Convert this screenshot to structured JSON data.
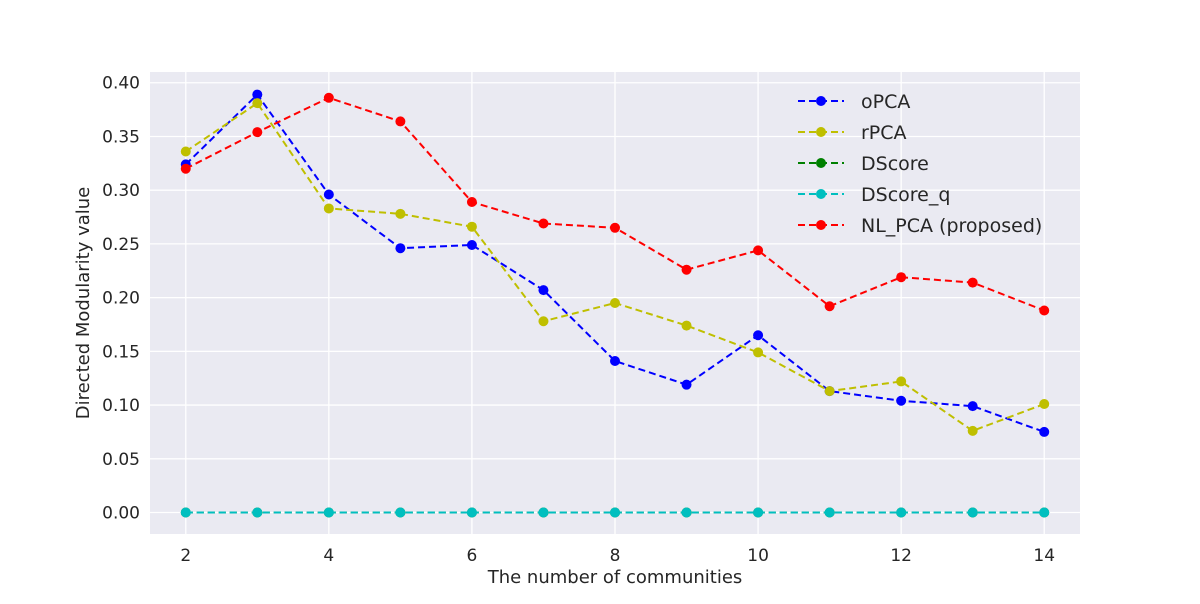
{
  "chart_data": {
    "type": "line",
    "title": "",
    "xlabel": "The number of communities",
    "ylabel": "Directed Modularity value",
    "x": [
      2,
      3,
      4,
      5,
      6,
      7,
      8,
      9,
      10,
      11,
      12,
      13,
      14
    ],
    "xlim": [
      1.5,
      14.5
    ],
    "ylim": [
      -0.02,
      0.41
    ],
    "xticks": [
      2,
      4,
      6,
      8,
      10,
      12,
      14
    ],
    "yticks": [
      0.0,
      0.05,
      0.1,
      0.15,
      0.2,
      0.25,
      0.3,
      0.35,
      0.4
    ],
    "ytick_labels": [
      "0.00",
      "0.05",
      "0.10",
      "0.15",
      "0.20",
      "0.25",
      "0.30",
      "0.35",
      "0.40"
    ],
    "grid": true,
    "legend_position": "top-right",
    "series": [
      {
        "name": "oPCA",
        "color": "#0000ff",
        "values": [
          0.324,
          0.389,
          0.296,
          0.246,
          0.249,
          0.207,
          0.141,
          0.119,
          0.165,
          0.113,
          0.104,
          0.099,
          0.075
        ]
      },
      {
        "name": "rPCA",
        "color": "#bfbf00",
        "values": [
          0.336,
          0.381,
          0.283,
          0.278,
          0.266,
          0.178,
          0.195,
          0.174,
          0.149,
          0.113,
          0.122,
          0.076,
          0.101
        ]
      },
      {
        "name": "DScore",
        "color": "#008000",
        "values": [
          0,
          0,
          0,
          0,
          0,
          0,
          0,
          0,
          0,
          0,
          0,
          0,
          0
        ]
      },
      {
        "name": "DScore_q",
        "color": "#00bfbf",
        "values": [
          0,
          0,
          0,
          0,
          0,
          0,
          0,
          0,
          0,
          0,
          0,
          0,
          0
        ]
      },
      {
        "name": "NL_PCA (proposed)",
        "color": "#ff0000",
        "values": [
          0.32,
          0.354,
          0.386,
          0.364,
          0.289,
          0.269,
          0.265,
          0.226,
          0.244,
          0.192,
          0.219,
          0.214,
          0.188
        ]
      }
    ]
  }
}
